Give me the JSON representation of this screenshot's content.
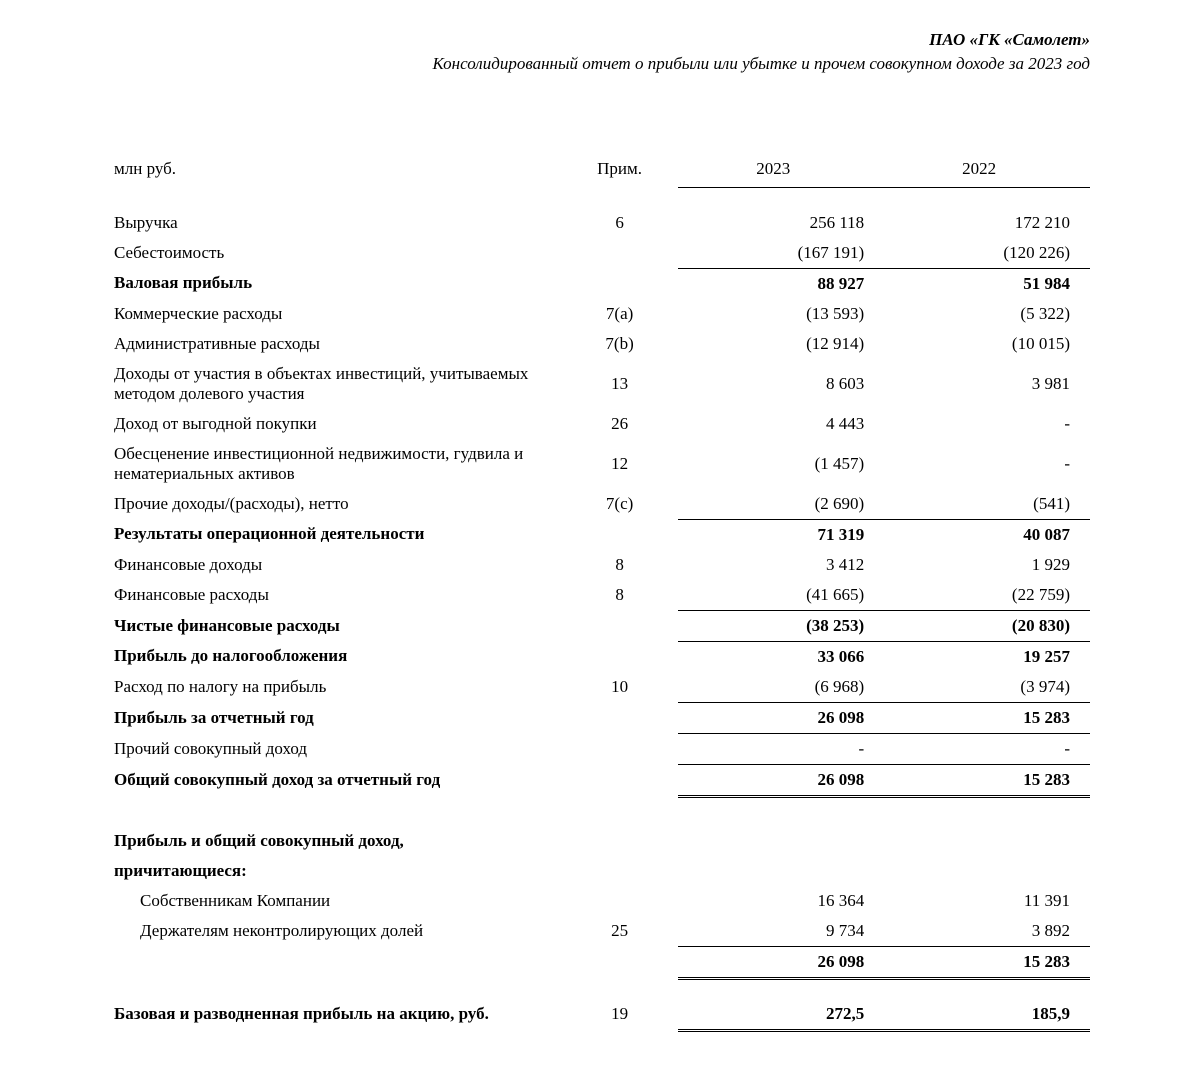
{
  "header": {
    "company": "ПАО «ГК «Самолет»",
    "title": "Консолидированный отчет о прибыли или убытке и прочем совокупном доходе за 2023 год"
  },
  "columns": {
    "units": "млн руб.",
    "note": "Прим.",
    "year1": "2023",
    "year2": "2022"
  },
  "rows": [
    {
      "label": "Выручка",
      "note": "6",
      "y1": "256 118",
      "y2": "172 210",
      "bold": false,
      "bt": false,
      "bb": false,
      "bb_dbl": false
    },
    {
      "label": "Себестоимость",
      "note": "",
      "y1": "(167 191)",
      "y2": "(120 226)",
      "bold": false,
      "bt": false,
      "bb": true,
      "bb_dbl": false
    },
    {
      "label": "Валовая прибыль",
      "note": "",
      "y1": "88 927",
      "y2": "51 984",
      "bold": true,
      "bt": false,
      "bb": false,
      "bb_dbl": false
    },
    {
      "label": "Коммерческие расходы",
      "note": "7(a)",
      "y1": "(13 593)",
      "y2": "(5 322)",
      "bold": false,
      "bt": false,
      "bb": false,
      "bb_dbl": false
    },
    {
      "label": "Административные расходы",
      "note": "7(b)",
      "y1": "(12 914)",
      "y2": "(10 015)",
      "bold": false,
      "bt": false,
      "bb": false,
      "bb_dbl": false
    },
    {
      "label": "Доходы от участия в объектах инвестиций, учитываемых методом долевого участия",
      "note": "13",
      "y1": "8 603",
      "y2": "3 981",
      "bold": false,
      "bt": false,
      "bb": false,
      "bb_dbl": false
    },
    {
      "label": "Доход от выгодной покупки",
      "note": "26",
      "y1": "4 443",
      "y2": "-",
      "bold": false,
      "bt": false,
      "bb": false,
      "bb_dbl": false
    },
    {
      "label": "Обесценение инвестиционной недвижимости, гудвила и нематериальных активов",
      "note": "12",
      "y1": "(1 457)",
      "y2": "-",
      "bold": false,
      "bt": false,
      "bb": false,
      "bb_dbl": false
    },
    {
      "label": "Прочие доходы/(расходы), нетто",
      "note": "7(c)",
      "y1": "(2 690)",
      "y2": "(541)",
      "bold": false,
      "bt": false,
      "bb": true,
      "bb_dbl": false
    },
    {
      "label": "Результаты операционной деятельности",
      "note": "",
      "y1": "71 319",
      "y2": "40 087",
      "bold": true,
      "bt": false,
      "bb": false,
      "bb_dbl": false
    },
    {
      "label": "Финансовые доходы",
      "note": "8",
      "y1": "3 412",
      "y2": "1 929",
      "bold": false,
      "bt": false,
      "bb": false,
      "bb_dbl": false
    },
    {
      "label": "Финансовые расходы",
      "note": "8",
      "y1": "(41 665)",
      "y2": "(22 759)",
      "bold": false,
      "bt": false,
      "bb": true,
      "bb_dbl": false
    },
    {
      "label": "Чистые финансовые расходы",
      "note": "",
      "y1": "(38 253)",
      "y2": "(20 830)",
      "bold": true,
      "bt": false,
      "bb": true,
      "bb_dbl": false
    },
    {
      "label": "Прибыль до налогообложения",
      "note": "",
      "y1": "33 066",
      "y2": "19 257",
      "bold": true,
      "bt": false,
      "bb": false,
      "bb_dbl": false
    },
    {
      "label": "Расход по налогу на прибыль",
      "note": "10",
      "y1": "(6 968)",
      "y2": "(3 974)",
      "bold": false,
      "bt": false,
      "bb": true,
      "bb_dbl": false
    },
    {
      "label": "Прибыль за отчетный год",
      "note": "",
      "y1": "26 098",
      "y2": "15 283",
      "bold": true,
      "bt": false,
      "bb": true,
      "bb_dbl": false
    },
    {
      "label": "Прочий совокупный доход",
      "note": "",
      "y1": "-",
      "y2": "-",
      "bold": false,
      "bt": false,
      "bb": true,
      "bb_dbl": false
    },
    {
      "label": "Общий совокупный доход за отчетный год",
      "note": "",
      "y1": "26 098",
      "y2": "15 283",
      "bold": true,
      "bt": false,
      "bb": false,
      "bb_dbl": true
    }
  ],
  "attributable": {
    "heading_l1": "Прибыль и общий совокупный доход,",
    "heading_l2": "причитающиеся:",
    "rows": [
      {
        "label": "Собственникам Компании",
        "note": "",
        "y1": "16 364",
        "y2": "11 391",
        "indent": true,
        "bb": false,
        "bb_dbl": false,
        "bold": false
      },
      {
        "label": "Держателям неконтролирующих долей",
        "note": "25",
        "y1": "9 734",
        "y2": "3 892",
        "indent": true,
        "bb": true,
        "bb_dbl": false,
        "bold": false
      },
      {
        "label": "",
        "note": "",
        "y1": "26 098",
        "y2": "15 283",
        "indent": false,
        "bb": false,
        "bb_dbl": true,
        "bold": true
      }
    ]
  },
  "eps": {
    "label": "Базовая и разводненная прибыль на акцию, руб.",
    "note": "19",
    "y1": "272,5",
    "y2": "185,9"
  }
}
